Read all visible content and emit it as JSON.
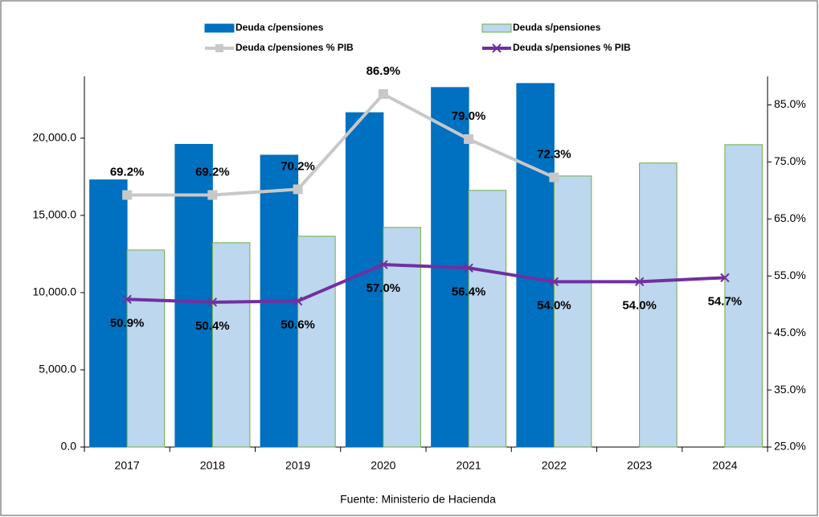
{
  "chart_data": {
    "type": "bar_line_combo",
    "source": "Fuente: Ministerio de Hacienda",
    "categories": [
      "2017",
      "2018",
      "2019",
      "2020",
      "2021",
      "2022",
      "2023",
      "2024"
    ],
    "series": [
      {
        "name": "Deuda c/pensiones",
        "type": "bar",
        "color": "#0070c0",
        "values": [
          17300,
          19600,
          18900,
          21650,
          23280,
          23540,
          null,
          null
        ]
      },
      {
        "name": "Deuda s/pensiones",
        "type": "bar",
        "color": "#bdd7ee",
        "edge_color": "#70ad47",
        "values": [
          12760,
          13230,
          13650,
          14220,
          16620,
          17550,
          18390,
          19580
        ]
      },
      {
        "name": "Deuda c/pensiones % PIB",
        "type": "line",
        "axis": "y2",
        "color": "#c8c8c8",
        "marker": "square",
        "values": [
          69.2,
          69.2,
          70.2,
          86.9,
          79.0,
          72.3,
          null,
          null
        ],
        "value_labels": [
          "69.2%",
          "69.2%",
          "70.2%",
          "86.9%",
          "79.0%",
          "72.3%",
          null,
          null
        ]
      },
      {
        "name": "Deuda s/pensiones % PIB",
        "type": "line",
        "axis": "y2",
        "color": "#7030a0",
        "marker": "x",
        "values": [
          50.9,
          50.4,
          50.6,
          57.0,
          56.4,
          54.0,
          54.0,
          54.7
        ],
        "value_labels": [
          "50.9%",
          "50.4%",
          "50.6%",
          "57.0%",
          "56.4%",
          "54.0%",
          "54.0%",
          "54.7%"
        ]
      }
    ],
    "ylim": [
      0,
      24000
    ],
    "yticks": [
      {
        "value": 0,
        "label": "0.0"
      },
      {
        "value": 5000,
        "label": "5,000.0"
      },
      {
        "value": 10000,
        "label": "10,000.0"
      },
      {
        "value": 15000,
        "label": "15,000.0"
      },
      {
        "value": 20000,
        "label": "20,000.0"
      }
    ],
    "y2lim": [
      25,
      90
    ],
    "y2ticks": [
      {
        "value": 25,
        "label": "25.0%"
      },
      {
        "value": 35,
        "label": "35.0%"
      },
      {
        "value": 45,
        "label": "45.0%"
      },
      {
        "value": 55,
        "label": "55.0%"
      },
      {
        "value": 65,
        "label": "65.0%"
      },
      {
        "value": 75,
        "label": "75.0%"
      },
      {
        "value": 85,
        "label": "85.0%"
      }
    ],
    "legend": "top"
  }
}
